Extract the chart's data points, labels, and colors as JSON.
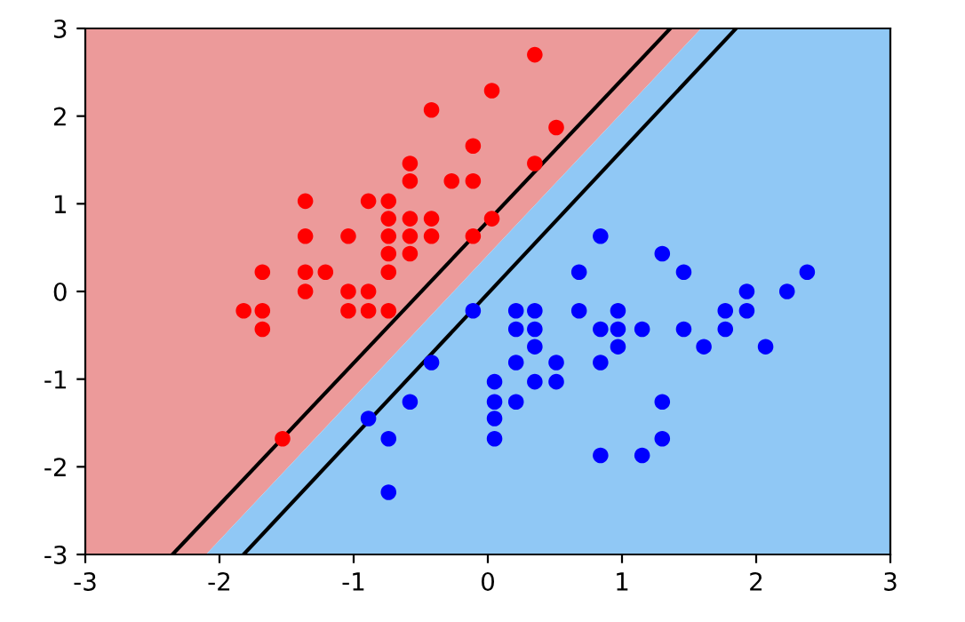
{
  "chart_data": {
    "type": "scatter",
    "xlim": [
      -3,
      3
    ],
    "ylim": [
      -3,
      3
    ],
    "xticks": [
      -3,
      -2,
      -1,
      0,
      1,
      2,
      3
    ],
    "yticks": [
      -3,
      -2,
      -1,
      0,
      1,
      2,
      3
    ],
    "grid": false,
    "legend": false,
    "series": [
      {
        "type": "area",
        "color": "#ec9a9a",
        "x": [
          -3,
          -3,
          1.59,
          -2.1
        ],
        "values": [
          -3,
          3,
          3,
          -3
        ]
      },
      {
        "type": "area",
        "color": "#90c8f5",
        "x": [
          -2.1,
          1.59,
          3,
          3
        ],
        "values": [
          -3,
          3,
          3,
          -3
        ]
      },
      {
        "type": "line",
        "color": "#000000",
        "line_style": "solid",
        "marker": "none",
        "x": [
          -2.35,
          1.36
        ],
        "values": [
          -3,
          3
        ]
      },
      {
        "type": "line",
        "color": "#000000",
        "line_style": "solid",
        "marker": "none",
        "x": [
          -1.82,
          1.85
        ],
        "values": [
          -3,
          3
        ]
      },
      {
        "marker": "circle",
        "color": "#ff0000",
        "x": [
          0.35,
          0.03,
          -0.42,
          0.51,
          -0.11,
          -0.58,
          -0.58,
          -0.27,
          -0.11,
          -1.36,
          -0.89,
          -0.74,
          -0.74,
          -0.58,
          -0.42,
          0.03,
          0.35,
          -1.36,
          -1.04,
          -0.74,
          -0.58,
          -0.42,
          -0.11,
          -0.74,
          -0.58,
          -1.68,
          -1.36,
          -1.21,
          -0.74,
          -1.36,
          -1.04,
          -0.89,
          -1.82,
          -1.68,
          -1.04,
          -0.89,
          -0.74,
          -1.68,
          -1.53
        ],
        "values": [
          2.7,
          2.29,
          2.07,
          1.87,
          1.66,
          1.46,
          1.26,
          1.26,
          1.26,
          1.03,
          1.03,
          1.03,
          0.83,
          0.83,
          0.83,
          0.83,
          1.46,
          0.63,
          0.63,
          0.63,
          0.63,
          0.63,
          0.63,
          0.43,
          0.43,
          0.22,
          0.22,
          0.22,
          0.22,
          0,
          0,
          0,
          -0.22,
          -0.22,
          -0.22,
          -0.22,
          -0.22,
          -0.43,
          -1.68
        ]
      },
      {
        "marker": "circle",
        "color": "#0000ff",
        "x": [
          -0.11,
          -0.42,
          -0.58,
          -0.89,
          -0.74,
          -0.74,
          0.84,
          0.68,
          1.3,
          1.46,
          1.93,
          2.23,
          2.38,
          0.21,
          0.35,
          0.68,
          0.97,
          1.77,
          1.93,
          0.21,
          0.35,
          0.84,
          0.97,
          1.15,
          1.46,
          1.77,
          0.35,
          0.97,
          1.61,
          2.07,
          0.21,
          0.51,
          0.84,
          0.05,
          0.35,
          0.51,
          0.05,
          0.21,
          1.3,
          0.05,
          0.05,
          1.3,
          0.84,
          1.15
        ],
        "values": [
          -0.22,
          -0.81,
          -1.26,
          -1.45,
          -1.68,
          -2.29,
          0.63,
          0.22,
          0.43,
          0.22,
          0,
          0,
          0.22,
          -0.22,
          -0.22,
          -0.22,
          -0.22,
          -0.22,
          -0.22,
          -0.43,
          -0.43,
          -0.43,
          -0.43,
          -0.43,
          -0.43,
          -0.43,
          -0.63,
          -0.63,
          -0.63,
          -0.63,
          -0.81,
          -0.81,
          -0.81,
          -1.03,
          -1.03,
          -1.03,
          -1.26,
          -1.26,
          -1.26,
          -1.45,
          -1.68,
          -1.68,
          -1.87,
          -1.87
        ]
      }
    ]
  }
}
